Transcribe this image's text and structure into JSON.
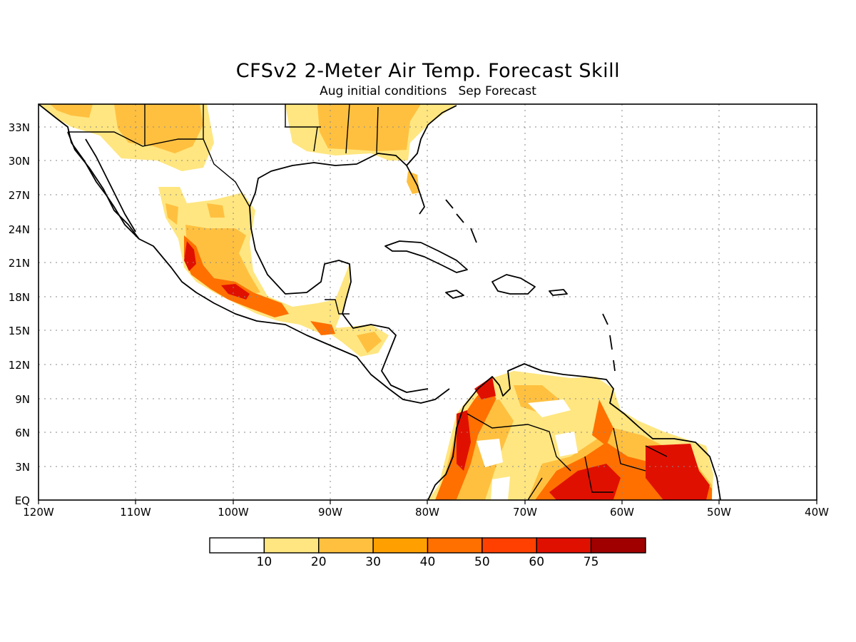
{
  "title": "CFSv2 2-Meter Air Temp. Forecast Skill",
  "subtitle": "Aug initial conditions   Sep Forecast",
  "map": {
    "lon_range": [
      -120,
      -40
    ],
    "lat_range": [
      0,
      35
    ],
    "grid": "dotted"
  },
  "axes": {
    "lon_ticks": [
      "120W",
      "110W",
      "100W",
      "90W",
      "80W",
      "70W",
      "60W",
      "50W",
      "40W"
    ],
    "lat_ticks": [
      "EQ",
      "3N",
      "6N",
      "9N",
      "12N",
      "15N",
      "18N",
      "21N",
      "24N",
      "27N",
      "30N",
      "33N"
    ]
  },
  "colorbar": {
    "colors": [
      "#ffffff",
      "#ffe680",
      "#ffc040",
      "#ffa000",
      "#ff7000",
      "#ff4000",
      "#e01000",
      "#a00000"
    ],
    "labels": [
      "10",
      "20",
      "30",
      "40",
      "50",
      "60",
      "75"
    ]
  }
}
